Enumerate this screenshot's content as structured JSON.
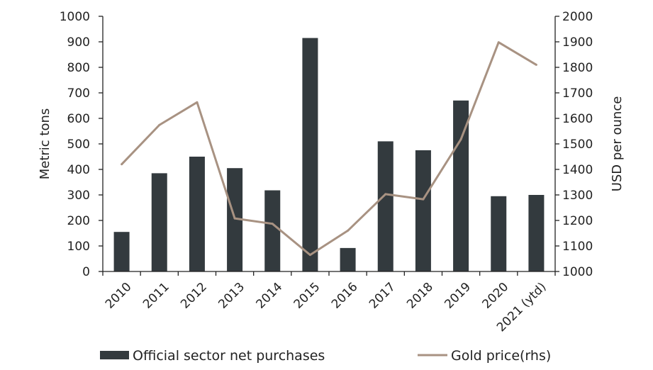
{
  "chart_data": {
    "type": "bar",
    "title": "",
    "categories": [
      "2010",
      "2011",
      "2012",
      "2013",
      "2014",
      "2015",
      "2016",
      "2017",
      "2018",
      "2019",
      "2020",
      "2021 (ytd)"
    ],
    "series": [
      {
        "name": "Official sector net purchases",
        "type": "bar",
        "axis": "left",
        "color": "#333a3e",
        "values": [
          155,
          385,
          450,
          405,
          318,
          915,
          92,
          510,
          475,
          670,
          295,
          300
        ]
      },
      {
        "name": "Gold price(rhs)",
        "type": "line",
        "axis": "right",
        "color": "#a89282",
        "values": [
          1420,
          1574,
          1663,
          1208,
          1187,
          1065,
          1160,
          1303,
          1283,
          1518,
          1898,
          1810
        ]
      }
    ],
    "y_left": {
      "label": "Metric tons",
      "min": 0,
      "max": 1000,
      "ticks": [
        0,
        100,
        200,
        300,
        400,
        500,
        600,
        700,
        800,
        900,
        1000
      ]
    },
    "y_right": {
      "label": "USD per ounce",
      "min": 1000,
      "max": 2000,
      "ticks": [
        1000,
        1100,
        1200,
        1300,
        1400,
        1500,
        1600,
        1700,
        1800,
        1900,
        2000
      ]
    },
    "grid": false,
    "legend": "bottom"
  }
}
